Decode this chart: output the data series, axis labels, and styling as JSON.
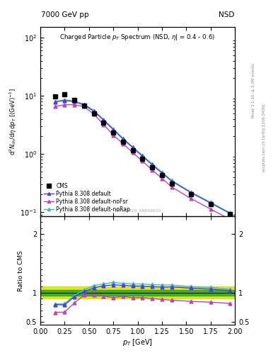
{
  "title_left": "7000 GeV pp",
  "title_right": "NSD",
  "watermark": "CMS_2010_S8656010",
  "right_label_top": "Rivet 3.1.10, ≥ 3.3M events",
  "right_label_bot": "mcplots.cern.ch [arXiv:1306.3436]",
  "cms_pt": [
    0.15,
    0.25,
    0.35,
    0.45,
    0.55,
    0.65,
    0.75,
    0.85,
    0.95,
    1.05,
    1.15,
    1.25,
    1.35,
    1.55,
    1.75,
    1.95
  ],
  "cms_y": [
    9.8,
    10.5,
    8.5,
    6.8,
    5.0,
    3.4,
    2.3,
    1.6,
    1.15,
    0.82,
    0.59,
    0.43,
    0.31,
    0.2,
    0.135,
    0.092
  ],
  "py_default_pt": [
    0.15,
    0.25,
    0.35,
    0.45,
    0.55,
    0.65,
    0.75,
    0.85,
    0.95,
    1.05,
    1.15,
    1.25,
    1.35,
    1.55,
    1.75,
    1.95
  ],
  "py_default_y": [
    7.8,
    8.3,
    7.9,
    6.9,
    5.4,
    3.8,
    2.6,
    1.8,
    1.28,
    0.91,
    0.65,
    0.47,
    0.34,
    0.215,
    0.143,
    0.095
  ],
  "py_noFsr_pt": [
    0.15,
    0.25,
    0.35,
    0.45,
    0.55,
    0.65,
    0.75,
    0.85,
    0.95,
    1.05,
    1.15,
    1.25,
    1.35,
    1.55,
    1.75,
    1.95
  ],
  "py_noFsr_y": [
    6.5,
    7.0,
    7.0,
    6.5,
    4.8,
    3.2,
    2.1,
    1.5,
    1.05,
    0.75,
    0.53,
    0.38,
    0.27,
    0.17,
    0.113,
    0.075
  ],
  "py_noRap_pt": [
    0.15,
    0.25,
    0.35,
    0.45,
    0.55,
    0.65,
    0.75,
    0.85,
    0.95,
    1.05,
    1.15,
    1.25,
    1.35,
    1.55,
    1.75,
    1.95
  ],
  "py_noRap_y": [
    7.9,
    8.5,
    8.1,
    7.1,
    5.6,
    3.9,
    2.7,
    1.85,
    1.32,
    0.94,
    0.67,
    0.485,
    0.35,
    0.22,
    0.147,
    0.097
  ],
  "color_cms": "#000000",
  "color_default": "#4444dd",
  "color_noFsr": "#bb44bb",
  "color_noRap": "#44bbbb",
  "band_inner_color": "#22aa22",
  "band_outer_color": "#dddd00",
  "band_inner_lo": 0.95,
  "band_inner_hi": 1.05,
  "band_outer_lo": 0.9,
  "band_outer_hi": 1.1,
  "ylim_main": [
    0.085,
    150
  ],
  "ylim_ratio": [
    0.45,
    2.3
  ],
  "xlim": [
    0.0,
    2.0
  ]
}
